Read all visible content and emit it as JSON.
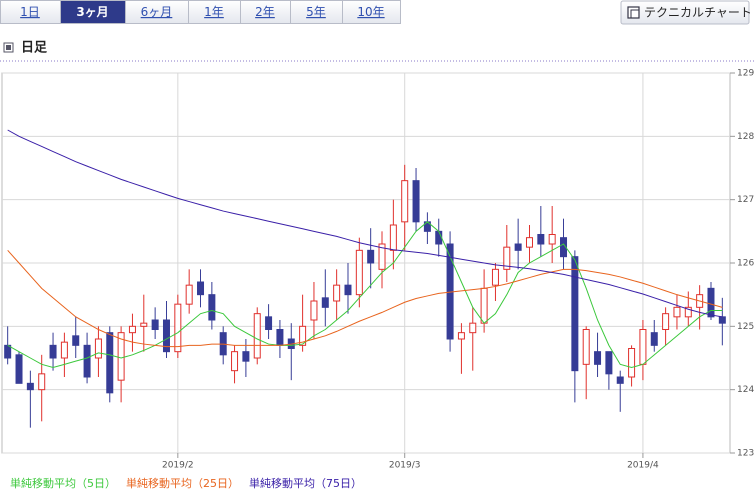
{
  "ui": {
    "tabs": [
      "1日",
      "3ヶ月",
      "6ヶ月",
      "1年",
      "2年",
      "5年",
      "10年"
    ],
    "active_tab": 1,
    "button": "テクニカルチャート",
    "section_title": "日足"
  },
  "chart_data": {
    "type": "candlestick",
    "categories": [
      null,
      null,
      null,
      null,
      null,
      null,
      null,
      null,
      null,
      null,
      null,
      null,
      null,
      null,
      null,
      "2019/2",
      null,
      null,
      null,
      null,
      null,
      null,
      null,
      null,
      null,
      null,
      null,
      null,
      null,
      null,
      null,
      null,
      null,
      null,
      null,
      "2019/3",
      null,
      null,
      null,
      null,
      null,
      null,
      null,
      null,
      null,
      null,
      null,
      null,
      null,
      null,
      null,
      null,
      null,
      null,
      null,
      null,
      "2019/4",
      null,
      null,
      null,
      null,
      null,
      null,
      null
    ],
    "open": [
      124.7,
      124.55,
      124.1,
      124.0,
      124.7,
      124.5,
      124.85,
      124.7,
      124.5,
      124.9,
      124.15,
      124.9,
      125.0,
      125.1,
      125.1,
      124.6,
      125.35,
      125.7,
      125.5,
      124.9,
      124.3,
      124.6,
      124.5,
      125.15,
      124.95,
      124.8,
      124.7,
      125.1,
      125.45,
      125.4,
      125.65,
      125.5,
      126.2,
      125.9,
      126.2,
      126.65,
      127.3,
      126.65,
      126.5,
      126.3,
      124.8,
      124.9,
      125.05,
      125.65,
      125.9,
      126.3,
      126.25,
      126.45,
      126.3,
      126.4,
      126.1,
      124.4,
      124.6,
      124.6,
      124.2,
      124.2,
      124.4,
      124.9,
      124.95,
      125.15,
      125.15,
      125.3,
      125.6,
      125.15
    ],
    "high": [
      125.0,
      124.6,
      124.3,
      124.55,
      124.9,
      124.9,
      125.15,
      124.9,
      125.0,
      125.0,
      125.0,
      125.2,
      125.5,
      125.3,
      125.4,
      125.5,
      125.9,
      125.9,
      125.7,
      125.0,
      124.7,
      124.8,
      125.3,
      125.35,
      125.1,
      125.05,
      125.5,
      125.7,
      125.9,
      125.9,
      126.0,
      126.4,
      126.55,
      126.5,
      127.0,
      127.55,
      127.5,
      126.8,
      126.7,
      126.5,
      125.05,
      125.3,
      125.9,
      126.0,
      126.6,
      126.7,
      126.6,
      126.9,
      126.9,
      126.7,
      126.2,
      125.0,
      124.9,
      124.6,
      124.3,
      124.7,
      125.1,
      125.1,
      125.3,
      125.5,
      125.55,
      125.65,
      125.7,
      125.45
    ],
    "low": [
      124.4,
      124.1,
      123.4,
      123.5,
      124.3,
      124.2,
      124.5,
      124.1,
      124.2,
      123.8,
      123.8,
      124.6,
      124.6,
      124.8,
      124.5,
      124.5,
      125.2,
      125.3,
      124.95,
      124.4,
      124.1,
      124.2,
      124.4,
      124.8,
      124.5,
      124.15,
      124.6,
      124.8,
      125.0,
      125.1,
      125.2,
      125.3,
      125.6,
      125.6,
      125.9,
      126.2,
      126.5,
      126.3,
      126.1,
      124.6,
      124.25,
      124.3,
      124.9,
      125.4,
      125.7,
      125.9,
      126.0,
      126.1,
      126.0,
      125.9,
      123.8,
      123.85,
      124.2,
      124.0,
      123.65,
      124.05,
      124.15,
      124.6,
      124.7,
      124.95,
      125.0,
      124.95,
      125.1,
      124.7
    ],
    "close": [
      124.5,
      124.1,
      124.0,
      124.25,
      124.5,
      124.75,
      124.7,
      124.2,
      124.8,
      123.95,
      124.9,
      125.0,
      125.05,
      124.95,
      124.6,
      125.35,
      125.65,
      125.5,
      125.1,
      124.55,
      124.6,
      124.45,
      125.2,
      124.95,
      124.7,
      124.65,
      125.0,
      125.4,
      125.3,
      125.65,
      125.5,
      126.2,
      126.0,
      126.3,
      126.6,
      127.3,
      126.65,
      126.5,
      126.3,
      124.8,
      124.9,
      125.05,
      125.6,
      125.9,
      126.25,
      126.2,
      126.4,
      126.3,
      126.45,
      126.1,
      124.3,
      124.95,
      124.4,
      124.25,
      124.1,
      124.65,
      124.95,
      124.7,
      125.2,
      125.3,
      125.3,
      125.5,
      125.15,
      125.05
    ],
    "up_color": "#e0302c",
    "down_color": "#363c96",
    "series": [
      {
        "name": "単純移動平均（5日）",
        "color": "#3cc83c",
        "values": [
          124.7,
          124.6,
          124.5,
          124.4,
          124.35,
          124.4,
          124.45,
          124.5,
          124.58,
          124.55,
          124.5,
          124.55,
          124.62,
          124.7,
          124.8,
          124.9,
          125.05,
          125.2,
          125.25,
          125.2,
          125.0,
          124.9,
          124.8,
          124.72,
          124.7,
          124.7,
          124.72,
          124.85,
          124.95,
          125.1,
          125.25,
          125.45,
          125.65,
          125.85,
          126.0,
          126.25,
          126.5,
          126.65,
          126.5,
          126.1,
          125.7,
          125.3,
          125.05,
          125.2,
          125.5,
          125.85,
          126.0,
          126.1,
          126.2,
          126.3,
          126.05,
          125.6,
          125.1,
          124.7,
          124.4,
          124.35,
          124.4,
          124.55,
          124.7,
          124.85,
          125.0,
          125.15,
          125.25,
          125.25
        ]
      },
      {
        "name": "単純移動平均（25日）",
        "color": "#e8641e",
        "values": [
          126.2,
          126.0,
          125.8,
          125.6,
          125.45,
          125.3,
          125.15,
          125.05,
          124.95,
          124.87,
          124.8,
          124.75,
          124.72,
          124.7,
          124.68,
          124.68,
          124.7,
          124.7,
          124.72,
          124.72,
          124.7,
          124.7,
          124.7,
          124.7,
          124.7,
          124.72,
          124.75,
          124.8,
          124.85,
          124.92,
          125.0,
          125.08,
          125.15,
          125.22,
          125.3,
          125.38,
          125.44,
          125.48,
          125.52,
          125.54,
          125.56,
          125.58,
          125.6,
          125.63,
          125.67,
          125.72,
          125.77,
          125.82,
          125.86,
          125.9,
          125.9,
          125.88,
          125.85,
          125.82,
          125.78,
          125.73,
          125.68,
          125.62,
          125.56,
          125.5,
          125.45,
          125.4,
          125.35,
          125.3
        ]
      },
      {
        "name": "単純移動平均（75日）",
        "color": "#3a20a8",
        "values": [
          128.1,
          128.0,
          127.92,
          127.84,
          127.76,
          127.68,
          127.6,
          127.53,
          127.46,
          127.39,
          127.32,
          127.26,
          127.2,
          127.14,
          127.08,
          127.02,
          126.97,
          126.92,
          126.87,
          126.82,
          126.78,
          126.74,
          126.7,
          126.66,
          126.62,
          126.58,
          126.54,
          126.5,
          126.46,
          126.42,
          126.37,
          126.32,
          126.28,
          126.24,
          126.21,
          126.19,
          126.17,
          126.15,
          126.12,
          126.09,
          126.06,
          126.03,
          126.0,
          125.97,
          125.95,
          125.93,
          125.91,
          125.88,
          125.85,
          125.82,
          125.78,
          125.74,
          125.7,
          125.66,
          125.61,
          125.56,
          125.51,
          125.45,
          125.39,
          125.33,
          125.27,
          125.22,
          125.18,
          125.15
        ]
      }
    ],
    "ylim": [
      123,
      129
    ],
    "yticks": [
      123,
      124,
      125,
      126,
      127,
      128,
      129
    ],
    "grid": true
  }
}
